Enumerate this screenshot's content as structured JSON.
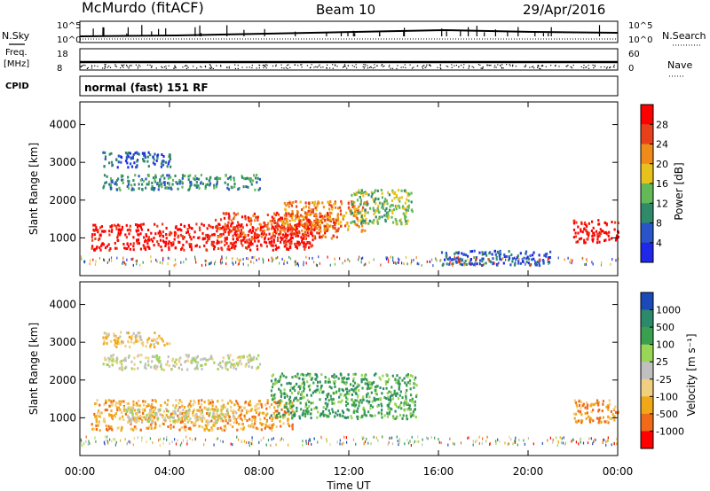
{
  "header": {
    "site": "McMurdo (fitACF)",
    "beam": "Beam 10",
    "date": "29/Apr/2016"
  },
  "side_labels": {
    "nsky": "N.Sky",
    "freq_line1": "Freq.",
    "freq_line2": "[MHz]",
    "cpid": "CPID",
    "nsearch": "N.Search",
    "nave": "Nave"
  },
  "top_axes": {
    "nsky_ticks": [
      "10^5",
      "10^0"
    ],
    "nsearch_ticks": [
      "10^5",
      "10^0"
    ],
    "freq_ticks": [
      "18",
      "8"
    ],
    "nave_ticks": [
      "60",
      "0"
    ]
  },
  "cpid_text": "normal (fast) 151 RF",
  "chart_data": [
    {
      "type": "heatmap",
      "name": "power",
      "ylabel": "Slant Range [km]",
      "xlabel": "",
      "y_ticks": [
        "1000",
        "2000",
        "3000",
        "4000"
      ],
      "ylim": [
        0,
        4600
      ],
      "xlim": [
        0,
        24
      ],
      "colorbar": {
        "label": "Power [dB]",
        "ticks": [
          "4",
          "8",
          "12",
          "16",
          "20",
          "24",
          "28"
        ],
        "colors": [
          "#1f28e8",
          "#2a55c8",
          "#2f8a6a",
          "#63b957",
          "#e8c21c",
          "#f08a18",
          "#e8401a",
          "#ff0000"
        ]
      },
      "regions": [
        {
          "t0": 0.5,
          "t1": 10.5,
          "r0": 700,
          "r1": 1400,
          "level": 7
        },
        {
          "t0": 6.0,
          "t1": 11.5,
          "r0": 1000,
          "r1": 1700,
          "level": 6
        },
        {
          "t0": 9.0,
          "t1": 12.8,
          "r0": 1200,
          "r1": 2000,
          "level": 5
        },
        {
          "t0": 12.0,
          "t1": 14.8,
          "r0": 1400,
          "r1": 2300,
          "level": 3
        },
        {
          "t0": 1.0,
          "t1": 8.0,
          "r0": 2300,
          "r1": 2700,
          "level": 2
        },
        {
          "t0": 1.0,
          "t1": 4.0,
          "r0": 2900,
          "r1": 3300,
          "level": 1
        },
        {
          "t0": 22.0,
          "t1": 24.0,
          "r0": 900,
          "r1": 1500,
          "level": 7
        },
        {
          "t0": 16.0,
          "t1": 21.0,
          "r0": 300,
          "r1": 700,
          "level": 1
        }
      ]
    },
    {
      "type": "heatmap",
      "name": "velocity",
      "ylabel": "Slant Range [km]",
      "xlabel": "Time UT",
      "y_ticks": [
        "1000",
        "2000",
        "3000",
        "4000"
      ],
      "ylim": [
        0,
        4600
      ],
      "xlim": [
        0,
        24
      ],
      "x_ticks": [
        "00:00",
        "04:00",
        "08:00",
        "12:00",
        "16:00",
        "20:00",
        "00:00"
      ],
      "colorbar": {
        "label": "Velocity [m s⁻¹]",
        "ticks": [
          "-1000",
          "-500",
          "-100",
          "-25",
          "25",
          "100",
          "500",
          "1000"
        ],
        "colors": [
          "#ff0000",
          "#f06a18",
          "#f0a818",
          "#f0d080",
          "#c0c0c0",
          "#9ad655",
          "#3aa050",
          "#2c8a6a",
          "#1a4ab8"
        ]
      },
      "regions": [
        {
          "t0": 0.5,
          "t1": 9.5,
          "r0": 700,
          "r1": 1500,
          "level": 2
        },
        {
          "t0": 2.0,
          "t1": 7.0,
          "r0": 900,
          "r1": 1300,
          "level": 4
        },
        {
          "t0": 8.5,
          "t1": 15.0,
          "r0": 1000,
          "r1": 2200,
          "level": 6
        },
        {
          "t0": 1.0,
          "t1": 8.0,
          "r0": 2300,
          "r1": 2700,
          "level": 4
        },
        {
          "t0": 1.0,
          "t1": 4.0,
          "r0": 2900,
          "r1": 3300,
          "level": 3
        },
        {
          "t0": 22.0,
          "t1": 24.0,
          "r0": 900,
          "r1": 1500,
          "level": 2
        }
      ]
    }
  ]
}
